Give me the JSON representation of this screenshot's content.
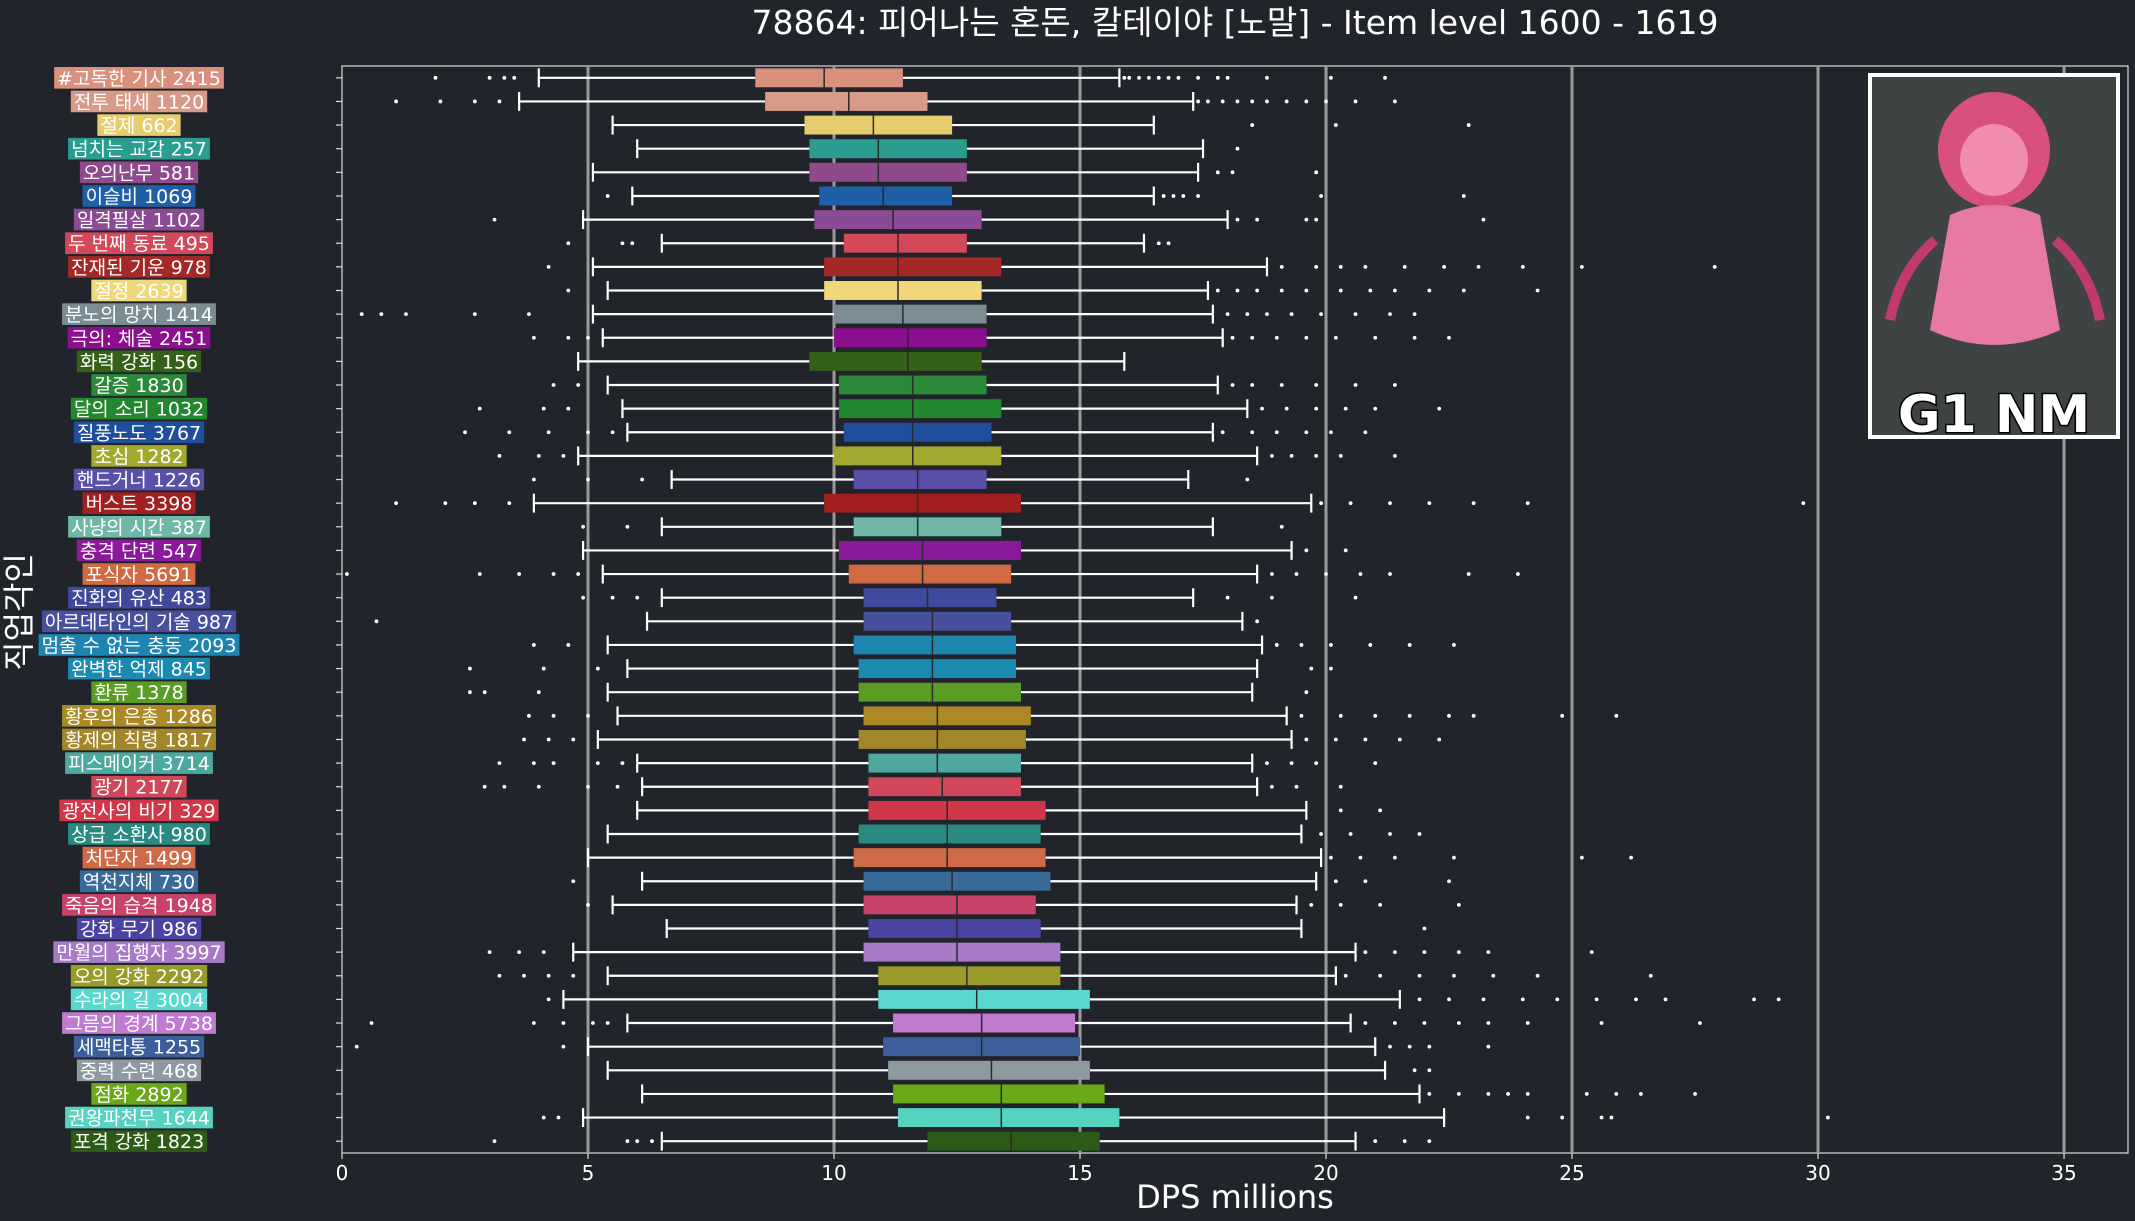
{
  "chart_data": {
    "type": "boxplot",
    "title": "78864: 피어나는 혼돈, 칼테이야 [노말] - Item level 1600 - 1619",
    "xlabel": "DPS millions",
    "ylabel": "직업각인",
    "xlim": [
      0,
      36.3
    ],
    "xticks": [
      0,
      5,
      10,
      15,
      20,
      25,
      30,
      35
    ],
    "vertical_grid": true,
    "badge": {
      "text": "G1 NM",
      "placement": "top-right"
    },
    "series": [
      {
        "label": "#고독한 기사 2415",
        "color": "#d9907c",
        "q1": 8.4,
        "median": 9.8,
        "q3": 11.4,
        "wlo": 4.0,
        "whi": 15.8,
        "outliers": [
          1.9,
          3.0,
          3.3,
          3.5,
          15.9,
          16.0,
          16.2,
          16.4,
          16.6,
          16.8,
          17.0,
          17.4,
          17.8,
          18.0,
          18.8,
          20.1,
          21.2
        ]
      },
      {
        "label": "전투 태세 1120",
        "color": "#d89a88",
        "q1": 8.6,
        "median": 10.3,
        "q3": 11.9,
        "wlo": 3.6,
        "whi": 17.3,
        "outliers": [
          1.1,
          2.0,
          2.7,
          3.2,
          17.4,
          17.6,
          17.9,
          18.2,
          18.5,
          18.8,
          19.2,
          19.6,
          20.0,
          20.6,
          21.4
        ]
      },
      {
        "label": "절제 662",
        "color": "#e6cd70",
        "q1": 9.4,
        "median": 10.8,
        "q3": 12.4,
        "wlo": 5.5,
        "whi": 16.5,
        "outliers": [
          18.5,
          20.2,
          22.9
        ]
      },
      {
        "label": "넘치는 교감 257",
        "color": "#2a9d8f",
        "q1": 9.5,
        "median": 10.9,
        "q3": 12.7,
        "wlo": 6.0,
        "whi": 17.5,
        "outliers": [
          18.2
        ]
      },
      {
        "label": "오의난무 581",
        "color": "#8e4a8c",
        "q1": 9.5,
        "median": 10.9,
        "q3": 12.7,
        "wlo": 5.1,
        "whi": 17.4,
        "outliers": [
          17.8,
          18.1,
          19.8
        ]
      },
      {
        "label": "이슬비 1069",
        "color": "#1f5fa8",
        "q1": 9.7,
        "median": 11.0,
        "q3": 12.4,
        "wlo": 5.9,
        "whi": 16.5,
        "outliers": [
          5.4,
          16.7,
          16.9,
          17.1,
          17.4,
          19.9,
          22.8
        ]
      },
      {
        "label": "일격필살 1102",
        "color": "#8a4a96",
        "q1": 9.6,
        "median": 11.2,
        "q3": 13.0,
        "wlo": 4.9,
        "whi": 18.0,
        "outliers": [
          3.1,
          18.2,
          18.6,
          19.6,
          19.8,
          23.2
        ]
      },
      {
        "label": "두 번째 동료 495",
        "color": "#d3485a",
        "q1": 10.2,
        "median": 11.3,
        "q3": 12.7,
        "wlo": 6.5,
        "whi": 16.3,
        "outliers": [
          4.6,
          5.7,
          5.9,
          16.6,
          16.8
        ]
      },
      {
        "label": "잔재된 기운 978",
        "color": "#a42828",
        "q1": 9.8,
        "median": 11.3,
        "q3": 13.4,
        "wlo": 5.1,
        "whi": 18.8,
        "outliers": [
          4.2,
          19.1,
          19.8,
          20.3,
          20.8,
          21.6,
          22.4,
          23.1,
          24.0,
          25.2,
          27.9
        ]
      },
      {
        "label": "절정 2639",
        "color": "#f0d87a",
        "q1": 9.8,
        "median": 11.3,
        "q3": 13.0,
        "wlo": 5.4,
        "whi": 17.6,
        "outliers": [
          4.6,
          17.8,
          18.2,
          18.6,
          19.1,
          19.6,
          20.3,
          20.9,
          21.4,
          22.1,
          22.8,
          24.3
        ]
      },
      {
        "label": "분노의 망치 1414",
        "color": "#7a8c94",
        "q1": 10.0,
        "median": 11.4,
        "q3": 13.1,
        "wlo": 5.1,
        "whi": 17.7,
        "outliers": [
          0.4,
          0.8,
          1.3,
          2.7,
          3.8,
          18.0,
          18.4,
          18.8,
          19.3,
          19.9,
          20.6,
          21.3,
          21.8
        ]
      },
      {
        "label": "극의: 체술 2451",
        "color": "#8b0f8f",
        "q1": 10.0,
        "median": 11.5,
        "q3": 13.1,
        "wlo": 5.3,
        "whi": 17.9,
        "outliers": [
          3.9,
          4.6,
          5.0,
          18.1,
          18.5,
          19.0,
          19.6,
          20.2,
          21.0,
          21.8,
          22.5
        ]
      },
      {
        "label": "화력 강화 156",
        "color": "#35601a",
        "q1": 9.5,
        "median": 11.5,
        "q3": 13.0,
        "wlo": 4.8,
        "whi": 15.9,
        "outliers": []
      },
      {
        "label": "갈증 1830",
        "color": "#2a8a3a",
        "q1": 10.1,
        "median": 11.6,
        "q3": 13.1,
        "wlo": 5.4,
        "whi": 17.8,
        "outliers": [
          4.3,
          4.8,
          18.1,
          18.5,
          19.1,
          19.8,
          20.6,
          21.4
        ]
      },
      {
        "label": "달의 소리 1032",
        "color": "#22872e",
        "q1": 10.1,
        "median": 11.6,
        "q3": 13.4,
        "wlo": 5.7,
        "whi": 18.4,
        "outliers": [
          2.8,
          4.1,
          4.6,
          18.7,
          19.2,
          19.8,
          20.4,
          21.0,
          22.3
        ]
      },
      {
        "label": "질풍노도 3767",
        "color": "#1e4e9c",
        "q1": 10.2,
        "median": 11.6,
        "q3": 13.2,
        "wlo": 5.8,
        "whi": 17.7,
        "outliers": [
          2.5,
          3.4,
          4.2,
          5.0,
          5.5,
          17.9,
          18.5,
          19.0,
          19.6,
          20.1,
          20.8
        ]
      },
      {
        "label": "초심 1282",
        "color": "#a3a82e",
        "q1": 10.0,
        "median": 11.6,
        "q3": 13.4,
        "wlo": 4.8,
        "whi": 18.6,
        "outliers": [
          3.2,
          4.0,
          4.5,
          18.9,
          19.3,
          19.8,
          20.3,
          21.4
        ]
      },
      {
        "label": "핸드거너 1226",
        "color": "#5a50a8",
        "q1": 10.4,
        "median": 11.7,
        "q3": 13.1,
        "wlo": 6.7,
        "whi": 17.2,
        "outliers": [
          3.9,
          5.0,
          6.1,
          18.4
        ]
      },
      {
        "label": "버스트 3398",
        "color": "#a31f1f",
        "q1": 9.8,
        "median": 11.7,
        "q3": 13.8,
        "wlo": 3.9,
        "whi": 19.7,
        "outliers": [
          1.1,
          2.1,
          2.7,
          3.4,
          19.9,
          20.5,
          21.3,
          22.1,
          23.0,
          24.1,
          29.7
        ]
      },
      {
        "label": "사냥의 시간 387",
        "color": "#6fb8a8",
        "q1": 10.4,
        "median": 11.7,
        "q3": 13.4,
        "wlo": 6.5,
        "whi": 17.7,
        "outliers": [
          4.9,
          5.8,
          19.1
        ]
      },
      {
        "label": "충격 단련 547",
        "color": "#8a1a9a",
        "q1": 10.1,
        "median": 11.8,
        "q3": 13.8,
        "wlo": 4.9,
        "whi": 19.3,
        "outliers": [
          19.6,
          20.4
        ]
      },
      {
        "label": "포식자 5691",
        "color": "#cf6a42",
        "q1": 10.3,
        "median": 11.8,
        "q3": 13.6,
        "wlo": 5.3,
        "whi": 18.6,
        "outliers": [
          0.1,
          2.8,
          3.6,
          4.3,
          4.8,
          18.9,
          19.4,
          20.0,
          20.7,
          21.3,
          22.9,
          23.9
        ]
      },
      {
        "label": "진화의 유산 483",
        "color": "#3f4a9c",
        "q1": 10.6,
        "median": 11.9,
        "q3": 13.3,
        "wlo": 6.5,
        "whi": 17.3,
        "outliers": [
          4.9,
          5.5,
          6.0,
          18.0,
          18.9,
          20.6
        ]
      },
      {
        "label": "아르데타인의 기술 987",
        "color": "#47509c",
        "q1": 10.6,
        "median": 12.0,
        "q3": 13.6,
        "wlo": 6.2,
        "whi": 18.3,
        "outliers": [
          0.7,
          18.6
        ]
      },
      {
        "label": "멈출 수 없는 충동 2093",
        "color": "#1e84b0",
        "q1": 10.4,
        "median": 12.0,
        "q3": 13.7,
        "wlo": 5.4,
        "whi": 18.7,
        "outliers": [
          3.9,
          4.6,
          19.0,
          19.5,
          20.1,
          20.9,
          21.7,
          22.6
        ]
      },
      {
        "label": "완벽한 억제 845",
        "color": "#1a8ab0",
        "q1": 10.5,
        "median": 12.0,
        "q3": 13.7,
        "wlo": 5.8,
        "whi": 18.6,
        "outliers": [
          2.6,
          4.1,
          5.2,
          19.7,
          20.1
        ]
      },
      {
        "label": "환류 1378",
        "color": "#5a9c24",
        "q1": 10.5,
        "median": 12.0,
        "q3": 13.8,
        "wlo": 5.4,
        "whi": 18.5,
        "outliers": [
          2.6,
          2.9,
          4.0,
          19.6
        ]
      },
      {
        "label": "황후의 은총 1286",
        "color": "#ab8a26",
        "q1": 10.6,
        "median": 12.1,
        "q3": 14.0,
        "wlo": 5.6,
        "whi": 19.2,
        "outliers": [
          3.8,
          4.3,
          5.0,
          19.5,
          20.3,
          21.0,
          21.7,
          22.5,
          23.0,
          24.8,
          25.9
        ]
      },
      {
        "label": "황제의 칙령 1817",
        "color": "#a3852a",
        "q1": 10.5,
        "median": 12.1,
        "q3": 13.9,
        "wlo": 5.2,
        "whi": 19.3,
        "outliers": [
          3.7,
          4.2,
          4.7,
          19.6,
          20.2,
          20.8,
          21.5,
          22.3
        ]
      },
      {
        "label": "피스메이커 3714",
        "color": "#4fa8a0",
        "q1": 10.7,
        "median": 12.1,
        "q3": 13.8,
        "wlo": 6.0,
        "whi": 18.5,
        "outliers": [
          3.2,
          3.9,
          4.3,
          5.2,
          5.7,
          18.8,
          19.3,
          19.8,
          21.0
        ]
      },
      {
        "label": "광기 2177",
        "color": "#d0475a",
        "q1": 10.7,
        "median": 12.2,
        "q3": 13.8,
        "wlo": 6.1,
        "whi": 18.6,
        "outliers": [
          2.9,
          3.3,
          4.0,
          5.0,
          5.6,
          18.9,
          19.4,
          20.3
        ]
      },
      {
        "label": "광전사의 비기 329",
        "color": "#d0384a",
        "q1": 10.7,
        "median": 12.3,
        "q3": 14.3,
        "wlo": 6.0,
        "whi": 19.6,
        "outliers": [
          20.3,
          21.1
        ]
      },
      {
        "label": "상급 소환사 980",
        "color": "#2a8a82",
        "q1": 10.5,
        "median": 12.3,
        "q3": 14.2,
        "wlo": 5.4,
        "whi": 19.5,
        "outliers": [
          19.9,
          20.5,
          21.3,
          21.9
        ]
      },
      {
        "label": "처단자 1499",
        "color": "#cf6a48",
        "q1": 10.4,
        "median": 12.3,
        "q3": 14.3,
        "wlo": 5.0,
        "whi": 19.9,
        "outliers": [
          20.1,
          20.7,
          21.4,
          22.6,
          25.2,
          26.2
        ]
      },
      {
        "label": "역천지체 730",
        "color": "#3a6a9a",
        "q1": 10.6,
        "median": 12.4,
        "q3": 14.4,
        "wlo": 6.1,
        "whi": 19.8,
        "outliers": [
          4.7,
          20.2,
          20.8,
          22.5
        ]
      },
      {
        "label": "죽음의 습격 1948",
        "color": "#c8436a",
        "q1": 10.6,
        "median": 12.5,
        "q3": 14.1,
        "wlo": 5.5,
        "whi": 19.4,
        "outliers": [
          5.0,
          19.7,
          20.3,
          21.1,
          22.7
        ]
      },
      {
        "label": "강화 무기 986",
        "color": "#4a43a2",
        "q1": 10.7,
        "median": 12.5,
        "q3": 14.2,
        "wlo": 6.6,
        "whi": 19.5,
        "outliers": [
          22.0
        ]
      },
      {
        "label": "만월의 집행자 3997",
        "color": "#a77ac8",
        "q1": 10.6,
        "median": 12.5,
        "q3": 14.6,
        "wlo": 4.7,
        "whi": 20.6,
        "outliers": [
          3.0,
          3.6,
          4.1,
          20.8,
          21.4,
          22.0,
          22.7,
          23.3,
          25.4
        ]
      },
      {
        "label": "오의 강화 2292",
        "color": "#9a9a2a",
        "q1": 10.9,
        "median": 12.7,
        "q3": 14.6,
        "wlo": 5.4,
        "whi": 20.2,
        "outliers": [
          3.2,
          3.7,
          4.2,
          4.7,
          20.4,
          21.1,
          21.9,
          22.6,
          23.4,
          24.3,
          26.6
        ]
      },
      {
        "label": "수라의 길 3004",
        "color": "#5ad8d0",
        "q1": 10.9,
        "median": 12.9,
        "q3": 15.2,
        "wlo": 4.5,
        "whi": 21.5,
        "outliers": [
          4.2,
          21.9,
          22.5,
          23.2,
          24.0,
          24.7,
          25.5,
          26.3,
          26.9,
          28.7,
          29.2
        ]
      },
      {
        "label": "그믐의 경계 5738",
        "color": "#c07ad0",
        "q1": 11.2,
        "median": 13.0,
        "q3": 14.9,
        "wlo": 5.8,
        "whi": 20.5,
        "outliers": [
          0.6,
          3.9,
          4.5,
          5.1,
          5.4,
          20.8,
          21.4,
          22.0,
          22.7,
          23.3,
          24.1,
          25.6,
          27.6
        ]
      },
      {
        "label": "세맥타통 1255",
        "color": "#3c5f9c",
        "q1": 11.0,
        "median": 13.0,
        "q3": 15.0,
        "wlo": 5.0,
        "whi": 21.0,
        "outliers": [
          0.3,
          4.5,
          21.3,
          21.7,
          22.1,
          23.3
        ]
      },
      {
        "label": "중력 수련 468",
        "color": "#8e9aa2",
        "q1": 11.1,
        "median": 13.2,
        "q3": 15.2,
        "wlo": 5.4,
        "whi": 21.2,
        "outliers": [
          21.8,
          22.1
        ]
      },
      {
        "label": "점화 2892",
        "color": "#6aa81a",
        "q1": 11.2,
        "median": 13.4,
        "q3": 15.5,
        "wlo": 6.1,
        "whi": 21.9,
        "outliers": [
          22.1,
          22.7,
          23.3,
          23.7,
          24.1,
          25.3,
          25.9,
          26.4,
          27.5
        ]
      },
      {
        "label": "권왕파천무 1644",
        "color": "#58d2c0",
        "q1": 11.3,
        "median": 13.4,
        "q3": 15.8,
        "wlo": 4.9,
        "whi": 22.4,
        "outliers": [
          4.1,
          4.4,
          24.1,
          24.8,
          25.6,
          25.8,
          30.2
        ]
      },
      {
        "label": "포격 강화 1823",
        "color": "#2e5a18",
        "q1": 11.9,
        "median": 13.6,
        "q3": 15.4,
        "wlo": 6.5,
        "whi": 20.6,
        "outliers": [
          3.1,
          5.8,
          6.0,
          6.3,
          21.0,
          21.6,
          22.1
        ]
      }
    ]
  }
}
